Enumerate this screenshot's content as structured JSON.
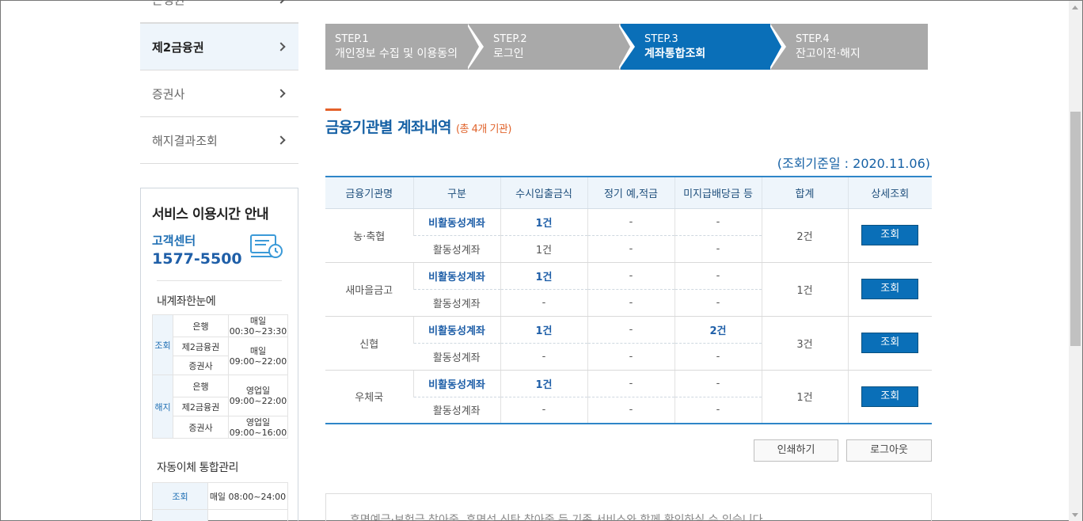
{
  "sidebar": {
    "nav": [
      {
        "label": "은행권"
      },
      {
        "label": "제2금융권"
      },
      {
        "label": "증권사"
      },
      {
        "label": "해지결과조회"
      }
    ],
    "service": {
      "title": "서비스 이용시간 안내",
      "cc_label": "고객센터",
      "cc_phone": "1577-5500",
      "section1_title": "내계좌한눈에",
      "section1": {
        "cat_query": "조회",
        "cat_cancel": "해지",
        "rows": [
          {
            "inst": "은행",
            "time1": "매일",
            "time2": "00:30~23:30"
          },
          {
            "inst": "제2금융권",
            "time1": "매일",
            "time2": "09:00~22:00"
          },
          {
            "inst": "증권사"
          },
          {
            "inst": "은행"
          },
          {
            "inst": "제2금융권",
            "time1": "영업일",
            "time2": "09:00~22:00"
          },
          {
            "inst": "증권사",
            "time1": "영업일",
            "time2": "09:00~16:00"
          }
        ]
      },
      "section2_title": "자동이체 통합관리",
      "section2": {
        "cat": "조회",
        "time": "매일 08:00~24:00"
      }
    }
  },
  "steps": [
    {
      "num": "STEP.1",
      "label": "개인정보 수집 및 이용동의"
    },
    {
      "num": "STEP.2",
      "label": "로그인"
    },
    {
      "num": "STEP.3",
      "label": "계좌통합조회"
    },
    {
      "num": "STEP.4",
      "label": "잔고이전·해지"
    }
  ],
  "section": {
    "title": "금융기관별 계좌내역",
    "count": "(총 4개 기관)",
    "query_date": "(조회기준일 : 2020.11.06)"
  },
  "table": {
    "headers": [
      "금융기관명",
      "구분",
      "수시입출금식",
      "정기 예,적금",
      "미지급배당금 등",
      "합계",
      "상세조회"
    ],
    "inactive_label": "비활동성계좌",
    "active_label": "활동성계좌",
    "view_label": "조회",
    "rows": [
      {
        "name": "농·축협",
        "inactive": [
          "1건",
          "-",
          "-"
        ],
        "active": [
          "1건",
          "-",
          "-"
        ],
        "total": "2건"
      },
      {
        "name": "새마을금고",
        "inactive": [
          "1건",
          "-",
          "-"
        ],
        "active": [
          "-",
          "-",
          "-"
        ],
        "total": "1건"
      },
      {
        "name": "신협",
        "inactive": [
          "1건",
          "-",
          "2건"
        ],
        "active": [
          "-",
          "-",
          "-"
        ],
        "total": "3건"
      },
      {
        "name": "우체국",
        "inactive": [
          "1건",
          "-",
          "-"
        ],
        "active": [
          "-",
          "-",
          "-"
        ],
        "total": "1건"
      }
    ]
  },
  "buttons": {
    "print": "인쇄하기",
    "logout": "로그아웃"
  },
  "notice": "휴면예금·보험금 찾아줌, 휴면성 신탁 찾아줌 등 기존 서비스와 함께 확인하실 수 있습니다",
  "colors": {
    "primary": "#0a6fb8",
    "accent": "#e4612a",
    "step_inactive": "#a9a9a9"
  }
}
